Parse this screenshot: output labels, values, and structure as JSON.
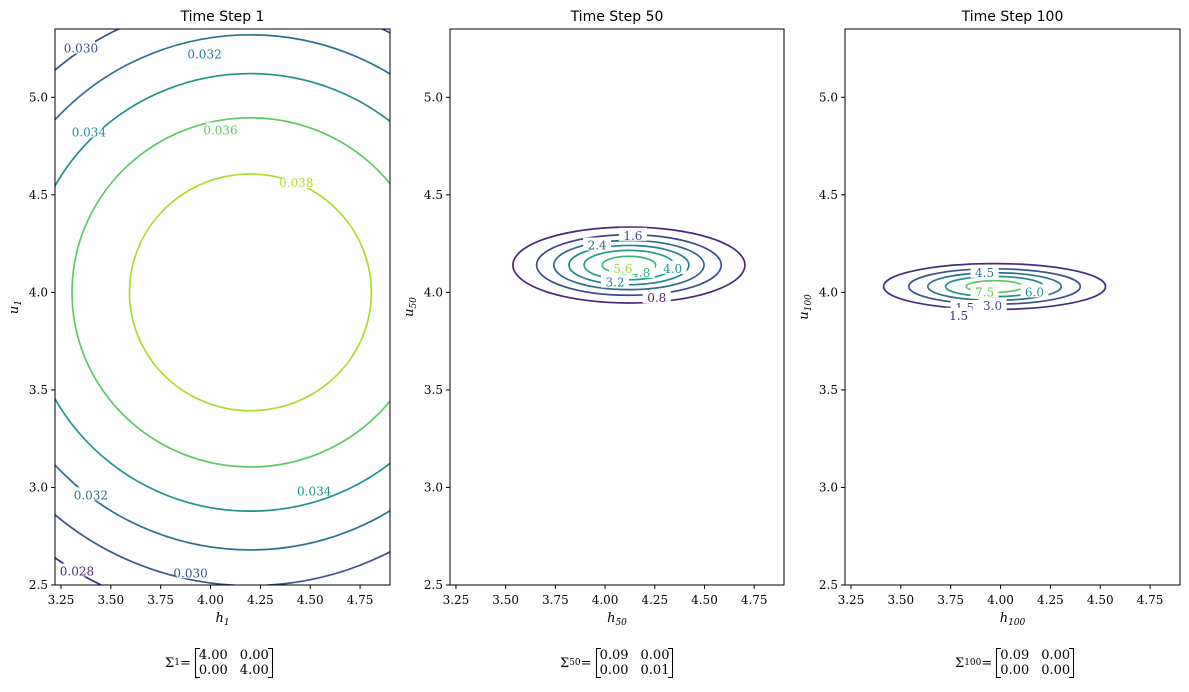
{
  "chart_data": [
    {
      "type": "contour",
      "title": "Time Step 1",
      "xlabel_var": "h",
      "xlabel_sub": "1",
      "ylabel_var": "u",
      "ylabel_sub": "1",
      "xlim": [
        3.22,
        4.9
      ],
      "ylim": [
        2.5,
        5.35
      ],
      "xticks": [
        "3.25",
        "3.50",
        "3.75",
        "4.00",
        "4.25",
        "4.50",
        "4.75"
      ],
      "yticks": [
        "2.5",
        "3.0",
        "3.5",
        "4.0",
        "4.5",
        "5.0"
      ],
      "mean": [
        4.2,
        4.0
      ],
      "cov": [
        [
          4.0,
          0.0
        ],
        [
          0.0,
          4.0
        ]
      ],
      "levels": [
        {
          "value": 0.028,
          "label": "0.028",
          "color": "#472d7b",
          "label_at": [
            3.33,
            2.57
          ]
        },
        {
          "value": 0.03,
          "label": "0.030",
          "color": "#3b528b",
          "label_at": [
            3.35,
            5.25
          ]
        },
        {
          "value": 0.032,
          "label": "0.032",
          "color": "#2c728e",
          "label_at": [
            3.97,
            5.22
          ]
        },
        {
          "value": 0.034,
          "label": "0.034",
          "color": "#21918c",
          "label_at": [
            3.39,
            4.82
          ]
        },
        {
          "value": 0.036,
          "label": "0.036",
          "color": "#5ec962",
          "label_at": [
            4.05,
            4.83
          ]
        },
        {
          "value": 0.038,
          "label": "0.038",
          "color": "#addc30",
          "label_at": [
            4.43,
            4.56
          ]
        }
      ],
      "extra_labels": [
        {
          "label": "0.032",
          "color": "#2c728e",
          "at": [
            3.4,
            2.96
          ]
        },
        {
          "label": "0.034",
          "color": "#21918c",
          "at": [
            4.52,
            2.98
          ]
        },
        {
          "label": "0.030",
          "color": "#3b528b",
          "at": [
            3.9,
            2.56
          ]
        }
      ],
      "sigma": {
        "sub": "1",
        "matrix": [
          "4.00",
          "0.00",
          "0.00",
          "4.00"
        ]
      }
    },
    {
      "type": "contour",
      "title": "Time Step 50",
      "xlabel_var": "h",
      "xlabel_sub": "50",
      "ylabel_var": "u",
      "ylabel_sub": "50",
      "xlim": [
        3.22,
        4.9
      ],
      "ylim": [
        2.5,
        5.35
      ],
      "xticks": [
        "3.25",
        "3.50",
        "3.75",
        "4.00",
        "4.25",
        "4.50",
        "4.75"
      ],
      "yticks": [
        "2.5",
        "3.0",
        "3.5",
        "4.0",
        "4.5",
        "5.0"
      ],
      "mean": [
        4.12,
        4.14
      ],
      "cov": [
        [
          0.09,
          0.0
        ],
        [
          0.0,
          0.01
        ]
      ],
      "levels": [
        {
          "value": 0.8,
          "label": "0.8",
          "color": "#482878",
          "label_at": [
            4.26,
            3.97
          ]
        },
        {
          "value": 1.6,
          "label": "1.6",
          "color": "#3e4a89",
          "label_at": [
            4.14,
            4.29
          ]
        },
        {
          "value": 2.4,
          "label": "2.4",
          "color": "#31688e",
          "label_at": [
            3.96,
            4.24
          ]
        },
        {
          "value": 3.2,
          "label": "3.2",
          "color": "#26828e",
          "label_at": [
            4.05,
            4.05
          ]
        },
        {
          "value": 4.0,
          "label": "4.0",
          "color": "#1f9e89",
          "label_at": [
            4.34,
            4.12
          ]
        },
        {
          "value": 4.8,
          "label": "4.8",
          "color": "#35b779",
          "label_at": [
            4.18,
            4.1
          ]
        },
        {
          "value": 5.6,
          "label": "5.6",
          "color": "#9fda3a",
          "label_at": [
            4.09,
            4.12
          ]
        }
      ],
      "extra_labels": [],
      "sigma": {
        "sub": "50",
        "matrix": [
          "0.09",
          "0.00",
          "0.00",
          "0.01"
        ]
      }
    },
    {
      "type": "contour",
      "title": "Time Step 100",
      "xlabel_var": "h",
      "xlabel_sub": "100",
      "ylabel_var": "u",
      "ylabel_sub": "100",
      "xlim": [
        3.22,
        4.9
      ],
      "ylim": [
        2.5,
        5.35
      ],
      "xticks": [
        "3.25",
        "3.50",
        "3.75",
        "4.00",
        "4.25",
        "4.50",
        "4.75"
      ],
      "yticks": [
        "2.5",
        "3.0",
        "3.5",
        "4.0",
        "4.5",
        "5.0"
      ],
      "mean": [
        3.97,
        4.03
      ],
      "cov": [
        [
          0.09,
          0.0
        ],
        [
          0.0,
          0.004
        ]
      ],
      "levels": [
        {
          "value": 1.5,
          "label": "1.5",
          "color": "#472d7b",
          "label_at": [
            3.82,
            3.92
          ]
        },
        {
          "value": 3.0,
          "label": "3.0",
          "color": "#3b528b",
          "label_at": [
            3.96,
            3.93
          ]
        },
        {
          "value": 4.5,
          "label": "4.5",
          "color": "#2c728e",
          "label_at": [
            3.92,
            4.1
          ]
        },
        {
          "value": 6.0,
          "label": "6.0",
          "color": "#21918c",
          "label_at": [
            4.17,
            4.0
          ]
        },
        {
          "value": 7.5,
          "label": "7.5",
          "color": "#5ec962",
          "label_at": [
            3.92,
            4.0
          ]
        },
        {
          "value": 9.0,
          "label": "",
          "color": "#addc30",
          "label_at": null
        }
      ],
      "extra_labels": [
        {
          "label": "1.5",
          "color": "#472d7b",
          "at": [
            3.79,
            3.88
          ]
        }
      ],
      "sigma": {
        "sub": "100",
        "matrix": [
          "0.09",
          "0.00",
          "0.00",
          "0.00"
        ]
      }
    }
  ]
}
